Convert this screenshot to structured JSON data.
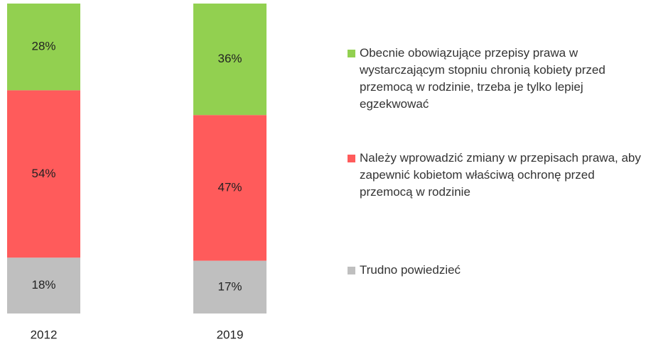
{
  "chart_data": {
    "type": "stacked-bar",
    "categories": [
      "2012",
      "2019"
    ],
    "series": [
      {
        "name": "Obecnie obowiązujące przepisy prawa w wystarczającym stopniu chronią kobiety przed przemocą w rodzinie, trzeba je tylko lepiej egzekwować",
        "color": "#92d050",
        "values": [
          28,
          36
        ],
        "value_labels": [
          "28%",
          "36%"
        ]
      },
      {
        "name": "Należy wprowadzić zmiany w przepisach prawa, aby zapewnić kobietom właściwą ochronę przed przemocą w rodzinie",
        "color": "#ff5b5b",
        "values": [
          54,
          47
        ],
        "value_labels": [
          "54%",
          "47%"
        ]
      },
      {
        "name": "Trudno powiedzieć",
        "color": "#bfbfbf",
        "values": [
          18,
          17
        ],
        "value_labels": [
          "18%",
          "17%"
        ]
      }
    ],
    "legend": "right"
  }
}
